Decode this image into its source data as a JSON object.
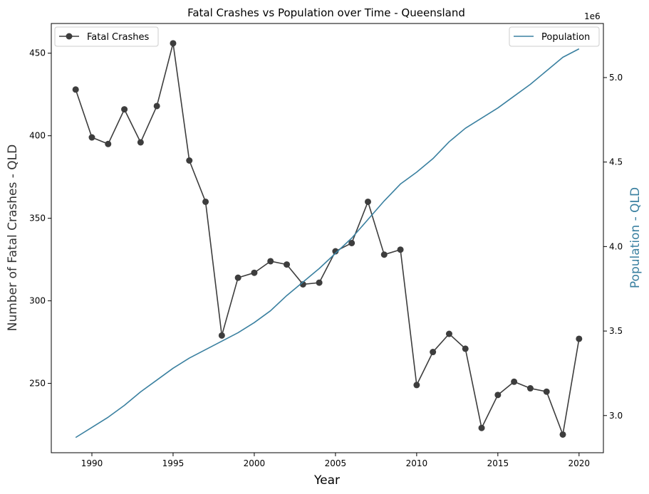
{
  "chart_data": {
    "type": "line",
    "title": "Fatal Crashes vs Population over Time - Queensland",
    "xlabel": "Year",
    "ylabel_left": "Number of Fatal Crashes - QLD",
    "ylabel_right": "Population - QLD",
    "right_axis_offset_text": "1e6",
    "xlim": [
      1987.5,
      2021.5
    ],
    "ylim_left": [
      208,
      468
    ],
    "ylim_right": [
      2.78,
      5.32
    ],
    "x_ticks": [
      1990,
      1995,
      2000,
      2005,
      2010,
      2015,
      2020
    ],
    "y_ticks_left": [
      250,
      300,
      350,
      400,
      450
    ],
    "y_ticks_right": [
      3.0,
      3.5,
      4.0,
      4.5,
      5.0
    ],
    "x_tick_labels": [
      "1990",
      "1995",
      "2000",
      "2005",
      "2010",
      "2015",
      "2020"
    ],
    "y_tick_labels_left": [
      "250",
      "300",
      "350",
      "400",
      "450"
    ],
    "y_tick_labels_right": [
      "3.0",
      "3.5",
      "4.0",
      "4.5",
      "5.0"
    ],
    "x": [
      1989,
      1990,
      1991,
      1992,
      1993,
      1994,
      1995,
      1996,
      1997,
      1998,
      1999,
      2000,
      2001,
      2002,
      2003,
      2004,
      2005,
      2006,
      2007,
      2008,
      2009,
      2010,
      2011,
      2012,
      2013,
      2014,
      2015,
      2016,
      2017,
      2018,
      2019,
      2020
    ],
    "series": [
      {
        "name": "Fatal Crashes",
        "axis": "left",
        "color": "#3d3d3d",
        "marker": "circle",
        "values": [
          428,
          399,
          395,
          416,
          396,
          418,
          456,
          385,
          360,
          279,
          314,
          317,
          324,
          322,
          310,
          311,
          330,
          335,
          360,
          328,
          331,
          249,
          269,
          280,
          271,
          223,
          243,
          251,
          247,
          245,
          219,
          277
        ]
      },
      {
        "name": "Population",
        "axis": "right",
        "color": "#3a80a0",
        "marker": "none",
        "values": [
          2.87,
          2.93,
          2.99,
          3.06,
          3.14,
          3.21,
          3.28,
          3.34,
          3.39,
          3.44,
          3.49,
          3.55,
          3.62,
          3.71,
          3.79,
          3.87,
          3.96,
          4.05,
          4.16,
          4.27,
          4.37,
          4.44,
          4.52,
          4.62,
          4.7,
          4.76,
          4.82,
          4.89,
          4.96,
          5.04,
          5.12,
          5.17
        ]
      }
    ],
    "legend_left_position": "upper-left",
    "legend_right_position": "upper-right",
    "grid": false
  }
}
